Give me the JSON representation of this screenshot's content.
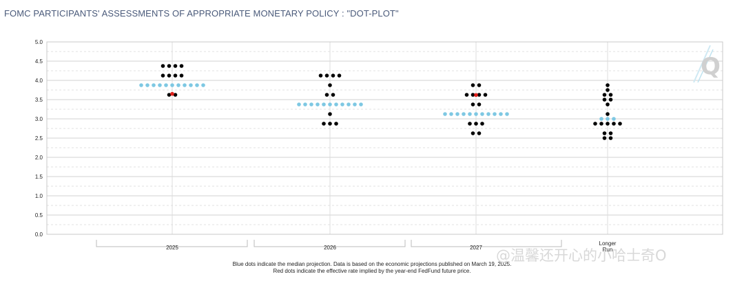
{
  "title": "FOMC PARTICIPANTS' ASSESSMENTS OF APPROPRIATE MONETARY POLICY : \"DOT-PLOT\"",
  "footnotes": [
    "Blue dots indicate the median projection. Data is based on the economic projections published on March 19, 2025.",
    "Red dots indicate the effective rate implied by the year-end FedFund future price."
  ],
  "watermark": "@温馨还开心的小哈士奇O",
  "logo_letter": "Q",
  "colors": {
    "participant": "#000000",
    "median": "#7ec8e3",
    "market": "#e0201b",
    "grid": "#d4d4d4"
  },
  "chart_data": {
    "type": "scatter",
    "categories": [
      "2025",
      "2026",
      "2027",
      "Longer\nRun"
    ],
    "ylim": [
      0,
      5
    ],
    "yticks": [
      "0.0",
      "0.5",
      "1.0",
      "1.5",
      "2.0",
      "2.5",
      "3.0",
      "3.5",
      "4.0",
      "4.5",
      "5.0"
    ],
    "grid": true,
    "participants": [
      [
        {
          "rate": 4.375,
          "count": 4
        },
        {
          "rate": 4.125,
          "count": 4
        },
        {
          "rate": 3.625,
          "count": 2
        }
      ],
      [
        {
          "rate": 4.125,
          "count": 4
        },
        {
          "rate": 3.875,
          "count": 1
        },
        {
          "rate": 3.625,
          "count": 2
        },
        {
          "rate": 3.125,
          "count": 1
        },
        {
          "rate": 2.875,
          "count": 3
        }
      ],
      [
        {
          "rate": 3.875,
          "count": 2
        },
        {
          "rate": 3.625,
          "count": 4
        },
        {
          "rate": 3.375,
          "count": 2
        },
        {
          "rate": 2.875,
          "count": 3
        },
        {
          "rate": 2.625,
          "count": 2
        }
      ],
      [
        {
          "rate": 3.875,
          "count": 1
        },
        {
          "rate": 3.75,
          "count": 1
        },
        {
          "rate": 3.625,
          "count": 2
        },
        {
          "rate": 3.5,
          "count": 2
        },
        {
          "rate": 3.375,
          "count": 1
        },
        {
          "rate": 3.125,
          "count": 1
        },
        {
          "rate": 2.875,
          "count": 5
        },
        {
          "rate": 2.625,
          "count": 2
        },
        {
          "rate": 2.5,
          "count": 2
        }
      ]
    ],
    "median": [
      3.875,
      3.375,
      3.125,
      3.0
    ],
    "market_implied": [
      3.65,
      null,
      3.62,
      null
    ]
  }
}
